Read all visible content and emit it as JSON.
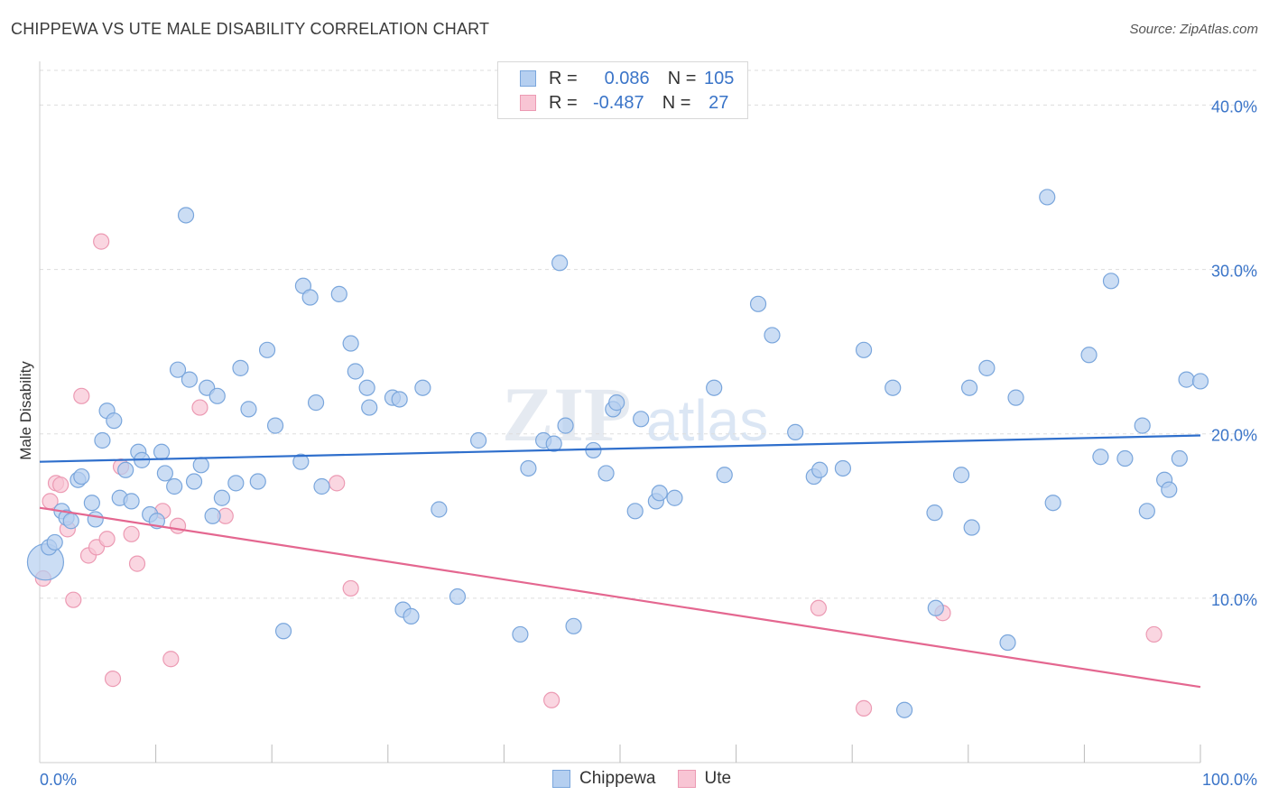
{
  "title": "CHIPPEWA VS UTE MALE DISABILITY CORRELATION CHART",
  "source": "Source: ZipAtlas.com",
  "watermark": {
    "zip": "ZIP",
    "atlas": "atlas"
  },
  "legend": {
    "chippewa": {
      "r_label": "R =",
      "r_value": "0.086",
      "n_label": "N =",
      "n_value": "105"
    },
    "ute": {
      "r_label": "R =",
      "r_value": "-0.487",
      "n_label": "N =",
      "n_value": "27"
    }
  },
  "colors": {
    "chippewa_fill": "#b5cff0",
    "chippewa_stroke": "#7aa6dc",
    "chippewa_line": "#2f6fcc",
    "ute_fill": "#f8c5d4",
    "ute_stroke": "#ec9ab3",
    "ute_line": "#e46790",
    "axis_text": "#3a74c8",
    "grid": "#dddddd"
  },
  "chart_data": {
    "type": "scatter",
    "title": "CHIPPEWA VS UTE MALE DISABILITY CORRELATION CHART",
    "xlabel": "",
    "ylabel": "Male Disability",
    "xlim": [
      0,
      100
    ],
    "ylim": [
      0,
      42
    ],
    "x_tick_labels": [
      "0.0%",
      "100.0%"
    ],
    "y_ticks": [
      10,
      20,
      30,
      40
    ],
    "y_tick_labels": [
      "10.0%",
      "20.0%",
      "30.0%",
      "40.0%"
    ],
    "series": [
      {
        "name": "Chippewa",
        "r": 0.086,
        "n": 105,
        "trend": {
          "x": [
            0,
            100
          ],
          "y": [
            18.3,
            19.9
          ]
        },
        "points": [
          [
            0.5,
            12.2
          ],
          [
            0.8,
            13.1
          ],
          [
            1.3,
            13.4
          ],
          [
            1.9,
            15.3
          ],
          [
            2.3,
            14.9
          ],
          [
            2.7,
            14.7
          ],
          [
            3.3,
            17.2
          ],
          [
            3.6,
            17.4
          ],
          [
            4.5,
            15.8
          ],
          [
            4.8,
            14.8
          ],
          [
            5.4,
            19.6
          ],
          [
            5.8,
            21.4
          ],
          [
            6.4,
            20.8
          ],
          [
            6.9,
            16.1
          ],
          [
            7.4,
            17.8
          ],
          [
            7.9,
            15.9
          ],
          [
            8.5,
            18.9
          ],
          [
            8.8,
            18.4
          ],
          [
            9.5,
            15.1
          ],
          [
            10.1,
            14.7
          ],
          [
            10.5,
            18.9
          ],
          [
            10.8,
            17.6
          ],
          [
            11.6,
            16.8
          ],
          [
            11.9,
            23.9
          ],
          [
            12.6,
            33.3
          ],
          [
            12.9,
            23.3
          ],
          [
            13.3,
            17.1
          ],
          [
            13.9,
            18.1
          ],
          [
            14.4,
            22.8
          ],
          [
            14.9,
            15.0
          ],
          [
            15.3,
            22.3
          ],
          [
            15.7,
            16.1
          ],
          [
            16.9,
            17.0
          ],
          [
            17.3,
            24.0
          ],
          [
            18.0,
            21.5
          ],
          [
            18.8,
            17.1
          ],
          [
            19.6,
            25.1
          ],
          [
            20.3,
            20.5
          ],
          [
            21.0,
            8.0
          ],
          [
            22.5,
            18.3
          ],
          [
            22.7,
            29.0
          ],
          [
            23.3,
            28.3
          ],
          [
            23.8,
            21.9
          ],
          [
            24.3,
            16.8
          ],
          [
            25.8,
            28.5
          ],
          [
            26.8,
            25.5
          ],
          [
            27.2,
            23.8
          ],
          [
            28.2,
            22.8
          ],
          [
            28.4,
            21.6
          ],
          [
            30.4,
            22.2
          ],
          [
            31.0,
            22.1
          ],
          [
            31.3,
            9.3
          ],
          [
            32.0,
            8.9
          ],
          [
            33.0,
            22.8
          ],
          [
            34.4,
            15.4
          ],
          [
            36.0,
            10.1
          ],
          [
            37.8,
            19.6
          ],
          [
            41.4,
            7.8
          ],
          [
            42.1,
            17.9
          ],
          [
            43.4,
            19.6
          ],
          [
            44.3,
            19.4
          ],
          [
            44.8,
            30.4
          ],
          [
            45.3,
            20.5
          ],
          [
            46.0,
            8.3
          ],
          [
            47.7,
            19.0
          ],
          [
            48.8,
            17.6
          ],
          [
            49.4,
            21.5
          ],
          [
            49.7,
            21.9
          ],
          [
            51.3,
            15.3
          ],
          [
            51.8,
            20.9
          ],
          [
            53.1,
            15.9
          ],
          [
            53.4,
            16.4
          ],
          [
            54.7,
            16.1
          ],
          [
            58.1,
            22.8
          ],
          [
            59.0,
            17.5
          ],
          [
            61.9,
            27.9
          ],
          [
            63.1,
            26.0
          ],
          [
            65.1,
            20.1
          ],
          [
            66.7,
            17.4
          ],
          [
            67.2,
            17.8
          ],
          [
            69.2,
            17.9
          ],
          [
            71.0,
            25.1
          ],
          [
            73.5,
            22.8
          ],
          [
            74.5,
            3.2
          ],
          [
            77.1,
            15.2
          ],
          [
            77.2,
            9.4
          ],
          [
            79.4,
            17.5
          ],
          [
            80.1,
            22.8
          ],
          [
            80.3,
            14.3
          ],
          [
            81.6,
            24.0
          ],
          [
            83.4,
            7.3
          ],
          [
            84.1,
            22.2
          ],
          [
            86.8,
            34.4
          ],
          [
            87.3,
            15.8
          ],
          [
            90.4,
            24.8
          ],
          [
            91.4,
            18.6
          ],
          [
            92.3,
            29.3
          ],
          [
            93.5,
            18.5
          ],
          [
            95.0,
            20.5
          ],
          [
            95.4,
            15.3
          ],
          [
            96.9,
            17.2
          ],
          [
            97.3,
            16.6
          ],
          [
            98.2,
            18.5
          ],
          [
            98.8,
            23.3
          ],
          [
            100.0,
            23.2
          ]
        ]
      },
      {
        "name": "Ute",
        "r": -0.487,
        "n": 27,
        "trend": {
          "x": [
            0,
            100
          ],
          "y": [
            15.5,
            4.6
          ]
        },
        "points": [
          [
            0.3,
            11.2
          ],
          [
            0.9,
            15.9
          ],
          [
            1.4,
            17.0
          ],
          [
            1.8,
            16.9
          ],
          [
            2.4,
            14.2
          ],
          [
            2.9,
            9.9
          ],
          [
            3.6,
            22.3
          ],
          [
            4.2,
            12.6
          ],
          [
            4.9,
            13.1
          ],
          [
            5.3,
            31.7
          ],
          [
            5.8,
            13.6
          ],
          [
            6.3,
            5.1
          ],
          [
            7.0,
            18.0
          ],
          [
            7.9,
            13.9
          ],
          [
            8.4,
            12.1
          ],
          [
            10.6,
            15.3
          ],
          [
            11.3,
            6.3
          ],
          [
            11.9,
            14.4
          ],
          [
            13.8,
            21.6
          ],
          [
            16.0,
            15.0
          ],
          [
            25.6,
            17.0
          ],
          [
            26.8,
            10.6
          ],
          [
            44.1,
            3.8
          ],
          [
            67.1,
            9.4
          ],
          [
            71.0,
            3.3
          ],
          [
            77.8,
            9.1
          ],
          [
            96.0,
            7.8
          ]
        ]
      }
    ]
  }
}
